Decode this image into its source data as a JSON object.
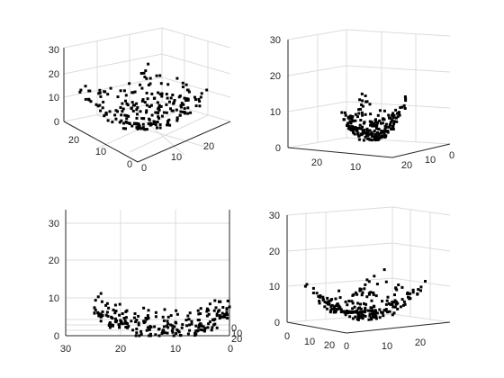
{
  "chart_data": [
    {
      "type": "scatter",
      "title": "",
      "xlabel": "",
      "ylabel": "",
      "zlabel": "",
      "xlim": [
        0,
        30
      ],
      "ylim": [
        0,
        30
      ],
      "zlim": [
        0,
        30
      ],
      "xticks": [
        "0",
        "10",
        "20"
      ],
      "yticks": [
        "0",
        "10",
        "20"
      ],
      "zticks": [
        "0",
        "10",
        "20",
        "30"
      ],
      "grid": true,
      "marker_color": "#000000",
      "series": [
        {
          "points": []
        }
      ]
    },
    {
      "type": "scatter",
      "title": "",
      "xlabel": "",
      "ylabel": "",
      "zlabel": "",
      "xlim": [
        0,
        30
      ],
      "ylim": [
        0,
        30
      ],
      "zlim": [
        0,
        30
      ],
      "xticks": [
        "0",
        "10",
        "20"
      ],
      "yticks": [
        "10",
        "20"
      ],
      "zticks": [
        "0",
        "10",
        "20",
        "30"
      ],
      "grid": true,
      "marker_color": "#000000",
      "series": [
        {
          "points": []
        }
      ]
    },
    {
      "type": "scatter",
      "title": "",
      "xlabel": "",
      "ylabel": "",
      "zlabel": "",
      "xlim": [
        0,
        30
      ],
      "ylim": [
        0,
        30
      ],
      "zlim": [
        0,
        30
      ],
      "xticks": [
        "30",
        "20",
        "10",
        "0"
      ],
      "yticks": [
        "0",
        "10",
        "20"
      ],
      "zticks": [
        "0",
        "10",
        "20",
        "30"
      ],
      "grid": true,
      "marker_color": "#000000",
      "series": [
        {
          "points": []
        }
      ]
    },
    {
      "type": "scatter",
      "title": "",
      "xlabel": "",
      "ylabel": "",
      "zlabel": "",
      "xlim": [
        0,
        30
      ],
      "ylim": [
        0,
        30
      ],
      "zlim": [
        0,
        30
      ],
      "xticks": [
        "0",
        "10",
        "20"
      ],
      "yticks": [
        "0",
        "10",
        "20"
      ],
      "zticks": [
        "0",
        "10",
        "20",
        "30"
      ],
      "grid": true,
      "marker_color": "#000000",
      "series": [
        {
          "points": []
        }
      ]
    }
  ]
}
